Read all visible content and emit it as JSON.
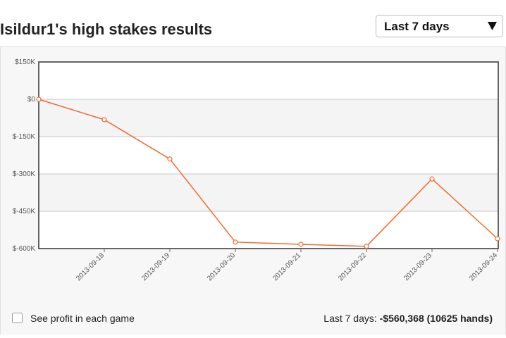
{
  "header": {
    "title": "Isildur1's high stakes results",
    "dropdown": "Last 7 days"
  },
  "chart_data": {
    "type": "line",
    "categories": [
      null,
      "2013-09-18",
      "2013-09-19",
      "2013-09-20",
      "2013-09-21",
      "2013-09-22",
      "2013-09-23",
      "2013-09-24"
    ],
    "values": [
      0,
      -82000,
      -240000,
      -574000,
      -583000,
      -591000,
      -320000,
      -560368
    ],
    "color": "#f26a2e",
    "ylim": [
      -600000,
      150000
    ],
    "yticks": [
      {
        "value": -600000,
        "label": "$-600K"
      },
      {
        "value": -450000,
        "label": "$-450K"
      },
      {
        "value": -300000,
        "label": "$-300K"
      },
      {
        "value": -150000,
        "label": "$-150K"
      },
      {
        "value": 0,
        "label": "$0"
      },
      {
        "value": 150000,
        "label": "$150K"
      }
    ],
    "grid": true
  },
  "footer": {
    "checkbox_label": "See profit in each game",
    "summary_label": "Last 7 days:",
    "summary_value": "-$560,368 (10625 hands)"
  }
}
